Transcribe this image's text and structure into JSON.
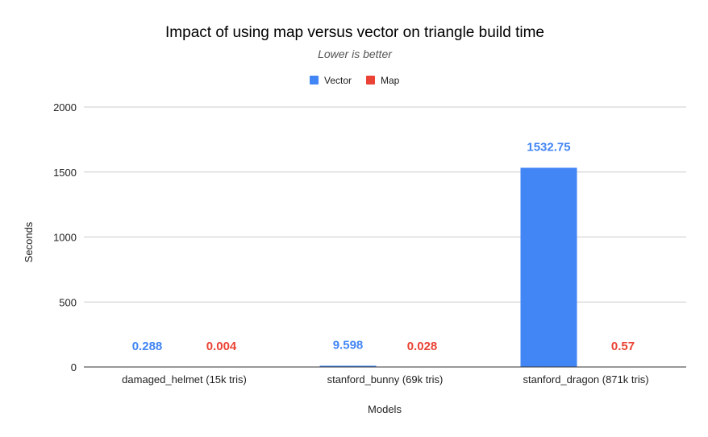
{
  "chart_data": {
    "type": "bar",
    "title": "Impact of using map versus vector on triangle build time",
    "subtitle": "Lower is better",
    "xlabel": "Models",
    "ylabel": "Seconds",
    "ylim": [
      0,
      2000
    ],
    "yticks": [
      "0",
      "500",
      "1000",
      "1500",
      "2000"
    ],
    "categories": [
      "damaged_helmet (15k tris)",
      "stanford_bunny (69k tris)",
      "stanford_dragon (871k tris)"
    ],
    "series": [
      {
        "name": "Vector",
        "color": "#4285f4",
        "values": [
          0.288,
          9.598,
          1532.75
        ],
        "labels": [
          "0.288",
          "9.598",
          "1532.75"
        ]
      },
      {
        "name": "Map",
        "color": "#ea4335",
        "values": [
          0.004,
          0.028,
          0.57
        ],
        "labels": [
          "0.004",
          "0.028",
          "0.57"
        ]
      }
    ],
    "legend": "top-center",
    "grid": true
  }
}
